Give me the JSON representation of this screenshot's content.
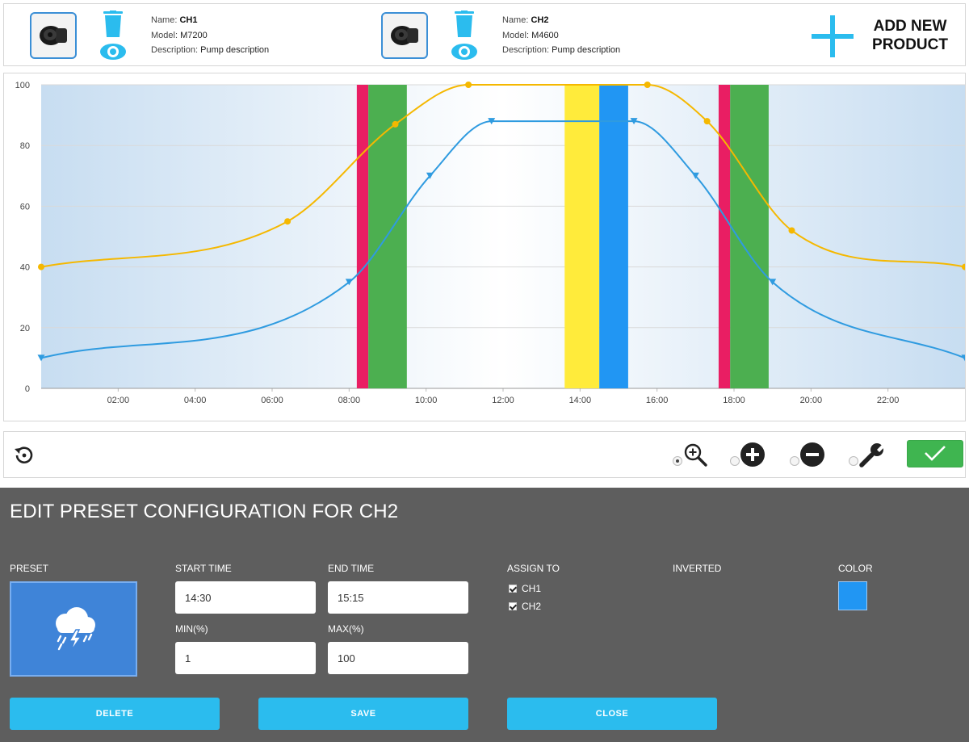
{
  "products": [
    {
      "name_label": "Name:",
      "name": "CH1",
      "model_label": "Model:",
      "model": "M7200",
      "description_label": "Description:",
      "description": "Pump description"
    },
    {
      "name_label": "Name:",
      "name": "CH2",
      "model_label": "Model:",
      "model": "M4600",
      "description_label": "Description:",
      "description": "Pump description"
    }
  ],
  "add_product": {
    "line1": "ADD NEW",
    "line2": "PRODUCT",
    "accent": "#2bbcee"
  },
  "chart_data": {
    "type": "line",
    "x_unit": "hours",
    "x_ticks": [
      "02:00",
      "04:00",
      "06:00",
      "08:00",
      "10:00",
      "12:00",
      "14:00",
      "16:00",
      "18:00",
      "20:00",
      "22:00"
    ],
    "y_ticks": [
      "0",
      "20",
      "40",
      "60",
      "80",
      "100"
    ],
    "ylim": [
      0,
      100
    ],
    "xlim": [
      "00:00",
      "24:00"
    ],
    "grid": true,
    "series": [
      {
        "color": "#f5b800",
        "marker": "circle",
        "points": [
          [
            "00:00",
            40
          ],
          [
            "06:24",
            55
          ],
          [
            "09:12",
            87
          ],
          [
            "11:06",
            100
          ],
          [
            "15:45",
            100
          ],
          [
            "17:18",
            88
          ],
          [
            "19:30",
            52
          ],
          [
            "24:00",
            40
          ]
        ]
      },
      {
        "color": "#2f9be0",
        "marker": "triangle",
        "points": [
          [
            "00:00",
            10
          ],
          [
            "08:00",
            35
          ],
          [
            "10:06",
            70
          ],
          [
            "11:42",
            88
          ],
          [
            "15:24",
            88
          ],
          [
            "17:00",
            70
          ],
          [
            "19:00",
            35
          ],
          [
            "24:00",
            10
          ]
        ]
      }
    ],
    "bands": [
      {
        "start": "08:12",
        "end": "08:30",
        "color": "#e91e63"
      },
      {
        "start": "08:30",
        "end": "09:30",
        "color": "#4caf50"
      },
      {
        "start": "13:36",
        "end": "14:30",
        "color": "#ffeb3b"
      },
      {
        "start": "14:30",
        "end": "15:15",
        "color": "#2196f3"
      },
      {
        "start": "17:36",
        "end": "17:54",
        "color": "#e91e63"
      },
      {
        "start": "17:54",
        "end": "18:54",
        "color": "#4caf50"
      }
    ]
  },
  "toolbar": {
    "tools": [
      {
        "icon": "zoom-in-icon",
        "selected": true
      },
      {
        "icon": "add-circle-icon",
        "selected": false
      },
      {
        "icon": "remove-circle-icon",
        "selected": false
      },
      {
        "icon": "wrench-icon",
        "selected": false
      }
    ],
    "confirm_color": "#3fb550"
  },
  "edit": {
    "title": "EDIT PRESET CONFIGURATION FOR CH2",
    "preset_label": "PRESET",
    "preset_icon": "storm-cloud-icon",
    "start_time_label": "START TIME",
    "start_time": "14:30",
    "end_time_label": "END TIME",
    "end_time": "15:15",
    "min_label": "MIN(%)",
    "min": "1",
    "max_label": "MAX(%)",
    "max": "100",
    "assign_label": "ASSIGN TO",
    "assign": [
      {
        "label": "CH1",
        "checked": true
      },
      {
        "label": "CH2",
        "checked": true
      }
    ],
    "inverted_label": "INVERTED",
    "color_label": "COLOR",
    "color": "#2196f3",
    "buttons": {
      "delete": "DELETE",
      "save": "SAVE",
      "close": "CLOSE"
    }
  }
}
